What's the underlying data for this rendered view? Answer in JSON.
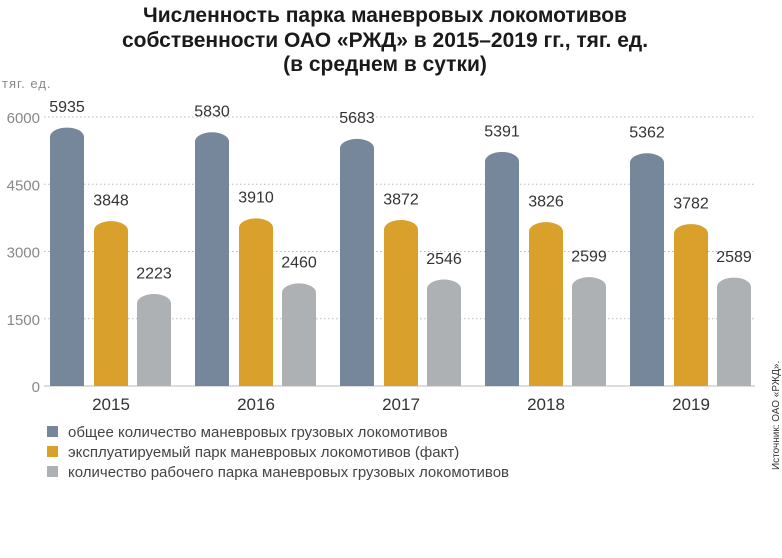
{
  "chart_data": {
    "type": "bar",
    "title": [
      "Численность парка маневровых локомотивов",
      "собственности ОАО «РЖД» в 2015–2019 гг., тяг. ед.",
      "(в среднем в сутки)"
    ],
    "ylabel": "тяг. ед.",
    "xlabel": "",
    "ylim": [
      0,
      6000
    ],
    "yticks": [
      "0",
      "1500",
      "3000",
      "4500",
      "6000"
    ],
    "grid": true,
    "legend_placement": "bottom",
    "categories": [
      "2015",
      "2016",
      "2017",
      "2018",
      "2019"
    ],
    "series": [
      {
        "name": "общее количество маневровых грузовых локомотивов",
        "color": "#76869b",
        "values": [
          5935,
          5830,
          5683,
          5391,
          5362
        ]
      },
      {
        "name": "эксплуатируемый парк маневровых локомотивов (факт)",
        "color": "#d9a02b",
        "values": [
          3848,
          3910,
          3872,
          3826,
          3782
        ]
      },
      {
        "name": "количество рабочего парка маневровых грузовых локомотивов",
        "color": "#adb1b4",
        "values": [
          2223,
          2460,
          2546,
          2599,
          2589
        ]
      }
    ],
    "source": "Источник: ОАО «РЖД»."
  }
}
